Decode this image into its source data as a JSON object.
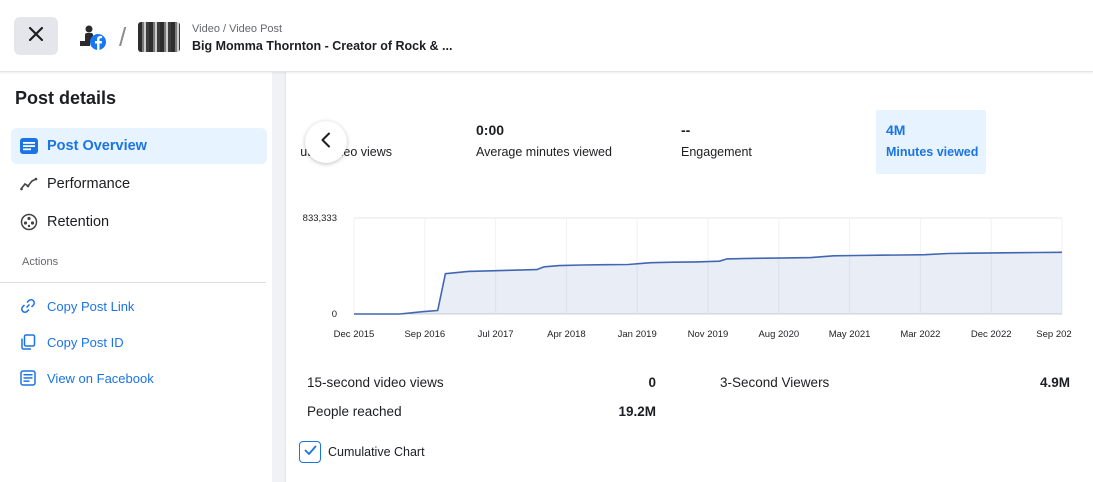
{
  "header": {
    "breadcrumb": "Video / Video Post",
    "post_title": "Big Momma Thornton - Creator of Rock & ...",
    "close_icon": "close-icon",
    "page_avatar_icon": "facebook-icon"
  },
  "sidebar": {
    "title": "Post details",
    "items": [
      {
        "label": "Post Overview",
        "icon": "post-overview-icon",
        "active": true
      },
      {
        "label": "Performance",
        "icon": "performance-icon",
        "active": false
      },
      {
        "label": "Retention",
        "icon": "retention-icon",
        "active": false
      }
    ],
    "actions_heading": "Actions",
    "actions": [
      {
        "label": "Copy Post Link",
        "icon": "link-icon"
      },
      {
        "label": "Copy Post ID",
        "icon": "copy-icon"
      },
      {
        "label": "View on Facebook",
        "icon": "facebook-post-icon"
      }
    ]
  },
  "metrics": [
    {
      "value": "",
      "label": "Minutes video views"
    },
    {
      "value": "0:00",
      "label": "Average minutes viewed"
    },
    {
      "value": "--",
      "label": "Engagement"
    },
    {
      "value": "4M",
      "label": "Minutes viewed",
      "selected": true
    }
  ],
  "chart_data": {
    "type": "area",
    "title": "",
    "xlabel": "",
    "ylabel": "",
    "y_ticks": [
      "833,333",
      "0"
    ],
    "ylim": [
      0,
      833333
    ],
    "x_tick_labels": [
      "Dec 2015",
      "Sep 2016",
      "Jul 2017",
      "Apr 2018",
      "Jan 2019",
      "Nov 2019",
      "Aug 2020",
      "May 2021",
      "Mar 2022",
      "Dec 2022",
      "Sep 202"
    ],
    "x": [
      "2015-12",
      "2016-03",
      "2016-06",
      "2016-09",
      "2016-11",
      "2016-12",
      "2017-03",
      "2017-06",
      "2017-09",
      "2017-12",
      "2018-01",
      "2018-03",
      "2018-06",
      "2018-09",
      "2018-12",
      "2019-03",
      "2019-06",
      "2019-09",
      "2019-12",
      "2020-01",
      "2020-03",
      "2020-06",
      "2020-09",
      "2020-12",
      "2021-03",
      "2021-06",
      "2021-09",
      "2021-12",
      "2022-03",
      "2022-06",
      "2022-09",
      "2022-12",
      "2023-03",
      "2023-06",
      "2023-09"
    ],
    "series": [
      {
        "values": [
          0,
          0,
          0,
          20000,
          30000,
          350000,
          370000,
          375000,
          380000,
          385000,
          410000,
          420000,
          425000,
          428000,
          430000,
          445000,
          450000,
          452000,
          458000,
          478000,
          481000,
          484000,
          487000,
          490000,
          505000,
          508000,
          510000,
          512000,
          515000,
          525000,
          528000,
          530000,
          532000,
          534000,
          536000
        ]
      }
    ],
    "grid": true,
    "legend": "none",
    "color": "#4267b2"
  },
  "stats": [
    {
      "label": "15-second video views",
      "value": "0"
    },
    {
      "label": "People reached",
      "value": "19.2M"
    },
    {
      "label": "3-Second Viewers",
      "value": "4.9M"
    }
  ],
  "cumulative": {
    "label": "Cumulative Chart",
    "checked": true
  },
  "colors": {
    "accent": "#1b74e4",
    "selected_bg": "#e7f3ff",
    "line": "#4267b2"
  }
}
